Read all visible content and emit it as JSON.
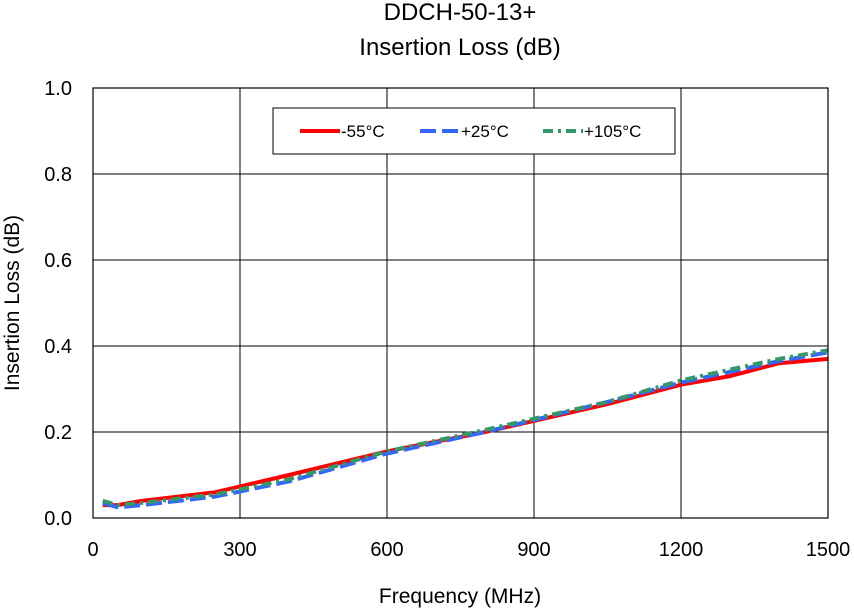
{
  "chart_data": {
    "type": "line",
    "title": "DDCH-50-13+",
    "subtitle": "Insertion Loss (dB)",
    "xlabel": "Frequency (MHz)",
    "ylabel": "Insertion Loss (dB)",
    "xlim": [
      0,
      1500
    ],
    "ylim": [
      0,
      1.0
    ],
    "xticks": [
      0,
      300,
      600,
      900,
      1200,
      1500
    ],
    "xtick_labels": [
      "0",
      "300",
      "600",
      "900",
      "1200",
      "1500"
    ],
    "yticks": [
      0,
      0.2,
      0.4,
      0.6,
      0.8,
      1.0
    ],
    "ytick_labels": [
      "0.0",
      "0.2",
      "0.4",
      "0.6",
      "0.8",
      "1.0"
    ],
    "grid": true,
    "legend_position": "top-right",
    "series": [
      {
        "name": "-55°C",
        "color": "#ff0000",
        "dash": "solid",
        "x": [
          20,
          50,
          100,
          250,
          400,
          600,
          800,
          1050,
          1200,
          1300,
          1400,
          1500
        ],
        "y": [
          0.03,
          0.03,
          0.04,
          0.06,
          0.1,
          0.155,
          0.2,
          0.265,
          0.31,
          0.33,
          0.36,
          0.37
        ]
      },
      {
        "name": "+25°C",
        "color": "#3366ff",
        "dash": "long-dash",
        "x": [
          20,
          50,
          100,
          250,
          400,
          600,
          800,
          1050,
          1200,
          1300,
          1400,
          1500
        ],
        "y": [
          0.035,
          0.025,
          0.03,
          0.05,
          0.085,
          0.15,
          0.2,
          0.27,
          0.315,
          0.34,
          0.365,
          0.385
        ]
      },
      {
        "name": "+105°C",
        "color": "#339966",
        "dash": "dash-dot",
        "x": [
          20,
          50,
          100,
          250,
          400,
          600,
          800,
          1050,
          1200,
          1300,
          1400,
          1500
        ],
        "y": [
          0.04,
          0.03,
          0.035,
          0.055,
          0.09,
          0.155,
          0.205,
          0.27,
          0.32,
          0.345,
          0.37,
          0.39
        ]
      }
    ]
  }
}
